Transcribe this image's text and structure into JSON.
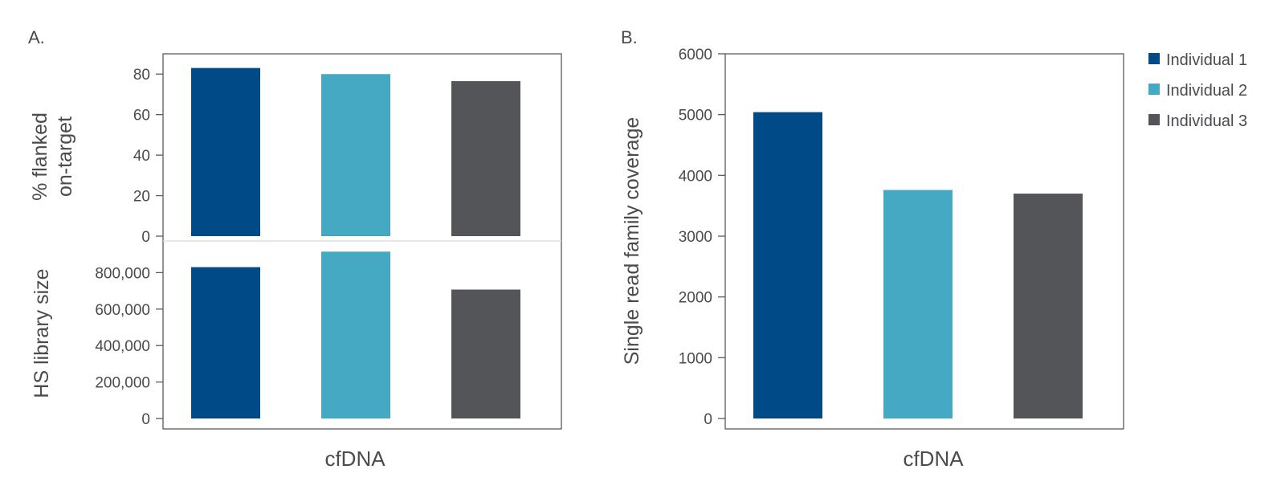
{
  "colors": {
    "individual_1": "#004a87",
    "individual_2": "#46a9c3",
    "individual_3": "#545559"
  },
  "chart_data": [
    {
      "panel": "A.",
      "type": "bar",
      "subplots": [
        {
          "id": "top",
          "ylabel": [
            "% flanked",
            "on-target"
          ],
          "ylim": [
            0,
            90
          ],
          "yticks": [
            0,
            20,
            40,
            60,
            80
          ],
          "ytick_labels": [
            "0",
            "20",
            "40",
            "60",
            "80"
          ],
          "categories": [
            "cfDNA"
          ],
          "series": [
            {
              "name": "Individual 1",
              "color": "#004a87",
              "values": [
                83
              ]
            },
            {
              "name": "Individual 2",
              "color": "#46a9c3",
              "values": [
                80
              ]
            },
            {
              "name": "Individual 3",
              "color": "#545559",
              "values": [
                76.5
              ]
            }
          ]
        },
        {
          "id": "bottom",
          "ylabel": [
            "HS library size"
          ],
          "ylim": [
            0,
            1000000
          ],
          "yticks": [
            0,
            200000,
            400000,
            600000,
            800000
          ],
          "ytick_labels": [
            "0",
            "200,000",
            "400,000",
            "600,000",
            "800,000"
          ],
          "categories": [
            "cfDNA"
          ],
          "series": [
            {
              "name": "Individual 1",
              "color": "#004a87",
              "values": [
                830000
              ]
            },
            {
              "name": "Individual 2",
              "color": "#46a9c3",
              "values": [
                915000
              ]
            },
            {
              "name": "Individual 3",
              "color": "#545559",
              "values": [
                707000
              ]
            }
          ]
        }
      ],
      "xlabel": "cfDNA"
    },
    {
      "panel": "B.",
      "type": "bar",
      "ylabel": "Single read family coverage",
      "ylim": [
        0,
        6000
      ],
      "yticks": [
        0,
        1000,
        2000,
        3000,
        4000,
        5000,
        6000
      ],
      "ytick_labels": [
        "0",
        "1000",
        "2000",
        "3000",
        "4000",
        "5000",
        "6000"
      ],
      "categories": [
        "cfDNA"
      ],
      "xlabel": "cfDNA",
      "series": [
        {
          "name": "Individual 1",
          "color": "#004a87",
          "values": [
            5040
          ]
        },
        {
          "name": "Individual 2",
          "color": "#46a9c3",
          "values": [
            3760
          ]
        },
        {
          "name": "Individual 3",
          "color": "#545559",
          "values": [
            3700
          ]
        }
      ],
      "legend": {
        "position": "right",
        "entries": [
          "Individual 1",
          "Individual 2",
          "Individual 3"
        ]
      }
    }
  ]
}
